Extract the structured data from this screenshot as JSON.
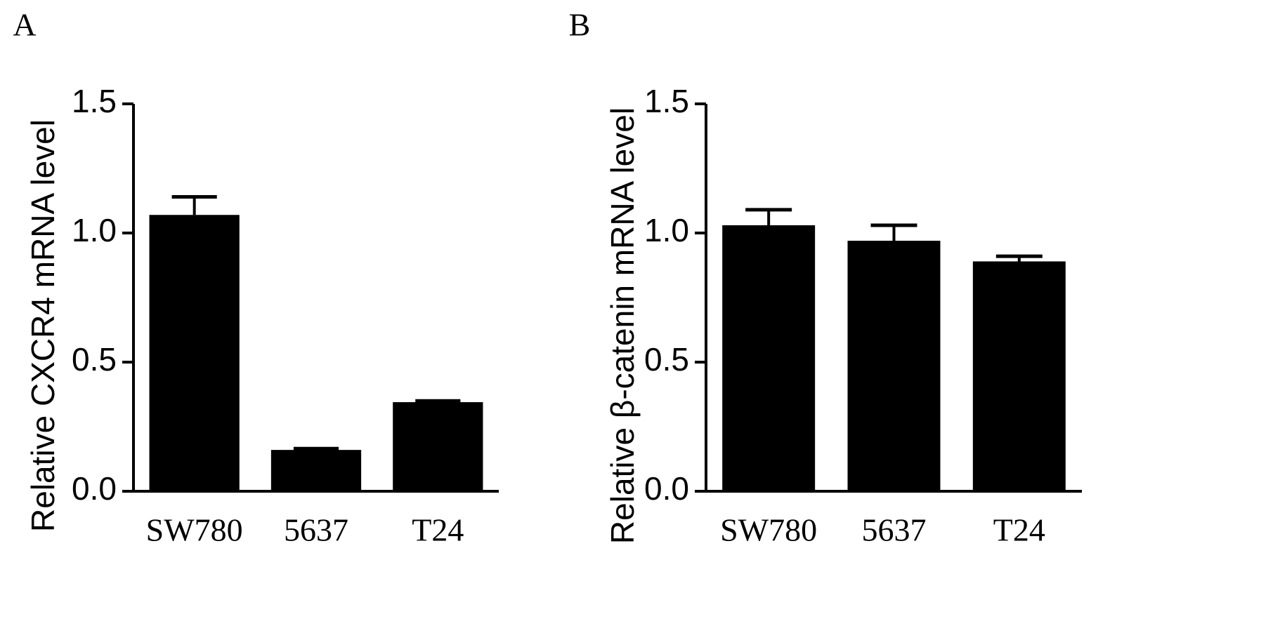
{
  "chart_data": [
    {
      "type": "bar",
      "label": "A",
      "ylabel": "Relative CXCR4 mRNA level",
      "categories": [
        "SW780",
        "5637",
        "T24"
      ],
      "values": [
        1.07,
        0.16,
        0.345
      ],
      "errors": [
        0.07,
        0.005,
        0.005
      ],
      "color": "#000000",
      "ylim": [
        0,
        1.5
      ],
      "yticks": [
        {
          "value": 0,
          "label": "0.0"
        },
        0.5,
        {
          "value": 1,
          "label": "1.0"
        },
        1.5
      ]
    },
    {
      "type": "bar",
      "label": "B",
      "ylabel": "Relative β-catenin mRNA level",
      "categories": [
        "SW780",
        "5637",
        "T24"
      ],
      "values": [
        1.03,
        0.97,
        0.89
      ],
      "errors": [
        0.06,
        0.06,
        0.02
      ],
      "color": "#000000",
      "ylim": [
        0,
        1.5
      ],
      "yticks": [
        {
          "value": 0,
          "label": "0.0"
        },
        0.5,
        {
          "value": 1,
          "label": "1.0"
        },
        1.5
      ]
    }
  ]
}
